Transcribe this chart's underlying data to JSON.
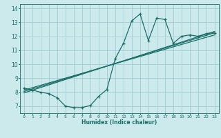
{
  "background_color": "#cce9ec",
  "grid_color": "#9ecdd4",
  "line_color": "#1a6e68",
  "xlabel": "Humidex (Indice chaleur)",
  "xlim": [
    -0.5,
    23.5
  ],
  "ylim": [
    6.5,
    14.3
  ],
  "yticks": [
    7,
    8,
    9,
    10,
    11,
    12,
    13,
    14
  ],
  "xticks": [
    0,
    1,
    2,
    3,
    4,
    5,
    6,
    7,
    8,
    9,
    10,
    11,
    12,
    13,
    14,
    15,
    16,
    17,
    18,
    19,
    20,
    21,
    22,
    23
  ],
  "series1_x": [
    0,
    1,
    2,
    3,
    4,
    5,
    6,
    7,
    8,
    9,
    10,
    11,
    12,
    13,
    14,
    15,
    16,
    17,
    18,
    19,
    20,
    21,
    22,
    23
  ],
  "series1_y": [
    8.3,
    8.15,
    8.0,
    7.9,
    7.6,
    7.0,
    6.9,
    6.9,
    7.05,
    7.7,
    8.2,
    10.4,
    11.5,
    13.1,
    13.6,
    11.7,
    13.3,
    13.2,
    11.5,
    12.0,
    12.1,
    12.0,
    12.2,
    12.25
  ],
  "line1_x": [
    0,
    23
  ],
  "line1_y": [
    8.05,
    12.25
  ],
  "line2_x": [
    0,
    23
  ],
  "line2_y": [
    8.15,
    12.1
  ],
  "line3_x": [
    0,
    23
  ],
  "line3_y": [
    7.95,
    12.35
  ]
}
